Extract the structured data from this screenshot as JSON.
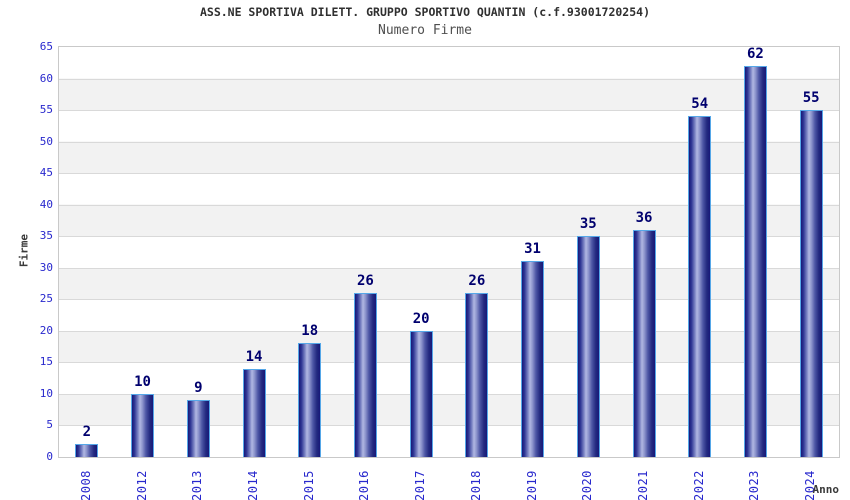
{
  "chart_data": {
    "type": "bar",
    "title": "ASS.NE SPORTIVA DILETT. GRUPPO SPORTIVO QUANTIN (c.f.93001720254)",
    "subtitle": "Numero Firme",
    "xlabel": "Anno",
    "ylabel": "Firme",
    "categories": [
      "2008",
      "2012",
      "2013",
      "2014",
      "2015",
      "2016",
      "2017",
      "2018",
      "2019",
      "2020",
      "2021",
      "2022",
      "2023",
      "2024"
    ],
    "values": [
      2,
      10,
      9,
      14,
      18,
      26,
      20,
      26,
      31,
      35,
      36,
      54,
      62,
      55
    ],
    "ylim": [
      0,
      65
    ],
    "yticks": [
      0,
      5,
      10,
      15,
      20,
      25,
      30,
      35,
      40,
      45,
      50,
      55,
      60,
      65
    ],
    "grid": "horizontal-bands",
    "legend": "none",
    "colors": {
      "bar_border": "#55a7e8",
      "bar_dark": "#181878",
      "bar_highlight": "#b0b7e2",
      "tick_label": "#2828cd",
      "value_label": "#00006e",
      "band_gray": "#f2f2f2",
      "grid_line": "#d9d9d9",
      "plot_border": "#c9c9c9",
      "title": "#2f2f2f",
      "subtitle": "#4f4f4f",
      "axis_title": "#3a3a3a"
    }
  }
}
